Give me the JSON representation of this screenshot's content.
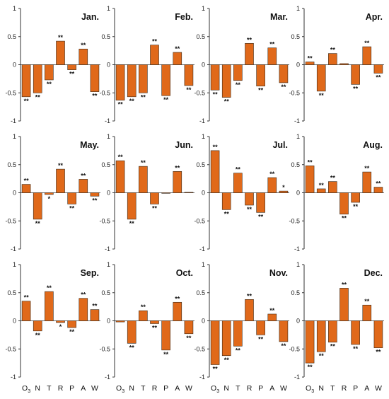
{
  "chart_data": [
    {
      "type": "bar",
      "month": "Jan.",
      "categories": [
        "O3",
        "N",
        "T",
        "R",
        "P",
        "A",
        "W"
      ],
      "values": [
        -0.57,
        -0.5,
        -0.27,
        0.42,
        -0.09,
        0.28,
        -0.48
      ],
      "significance": [
        "**",
        "**",
        "**",
        "**",
        "**",
        "**",
        "**"
      ],
      "ylim": [
        -1,
        1
      ]
    },
    {
      "type": "bar",
      "month": "Feb.",
      "categories": [
        "O3",
        "N",
        "T",
        "R",
        "P",
        "A",
        "W"
      ],
      "values": [
        -0.63,
        -0.57,
        -0.5,
        0.35,
        -0.55,
        0.22,
        -0.37
      ],
      "significance": [
        "**",
        "**",
        "**",
        "**",
        "**",
        "**",
        "**"
      ],
      "ylim": [
        -1,
        1
      ]
    },
    {
      "type": "bar",
      "month": "Mar.",
      "categories": [
        "O3",
        "N",
        "T",
        "R",
        "P",
        "A",
        "W"
      ],
      "values": [
        -0.45,
        -0.58,
        -0.28,
        0.38,
        -0.38,
        0.3,
        -0.32
      ],
      "significance": [
        "**",
        "**",
        "**",
        "**",
        "**",
        "**",
        "**"
      ],
      "ylim": [
        -1,
        1
      ]
    },
    {
      "type": "bar",
      "month": "Apr.",
      "categories": [
        "O3",
        "N",
        "T",
        "R",
        "P",
        "A",
        "W"
      ],
      "values": [
        0.05,
        -0.47,
        0.2,
        0.02,
        -0.35,
        0.32,
        -0.15
      ],
      "significance": [
        "**",
        "**",
        "**",
        "",
        "**",
        "**",
        "**"
      ],
      "ylim": [
        -1,
        1
      ]
    },
    {
      "type": "bar",
      "month": "May.",
      "categories": [
        "O3",
        "N",
        "T",
        "R",
        "P",
        "A",
        "W"
      ],
      "values": [
        0.15,
        -0.47,
        -0.03,
        0.42,
        -0.2,
        0.24,
        -0.06
      ],
      "significance": [
        "**",
        "**",
        "*",
        "**",
        "**",
        "**",
        "**"
      ],
      "ylim": [
        -1,
        1
      ]
    },
    {
      "type": "bar",
      "month": "Jun.",
      "categories": [
        "O3",
        "N",
        "T",
        "R",
        "P",
        "A",
        "W"
      ],
      "values": [
        0.57,
        -0.47,
        0.47,
        -0.2,
        -0.01,
        0.38,
        0.01
      ],
      "significance": [
        "**",
        "**",
        "**",
        "**",
        "",
        "**",
        ""
      ],
      "ylim": [
        -1,
        1
      ]
    },
    {
      "type": "bar",
      "month": "Jul.",
      "categories": [
        "O3",
        "N",
        "T",
        "R",
        "P",
        "A",
        "W"
      ],
      "values": [
        0.75,
        -0.3,
        0.35,
        -0.22,
        -0.35,
        0.27,
        0.03
      ],
      "significance": [
        "**",
        "**",
        "**",
        "**",
        "**",
        "**",
        "*"
      ],
      "ylim": [
        -1,
        1
      ]
    },
    {
      "type": "bar",
      "month": "Aug.",
      "categories": [
        "O3",
        "N",
        "T",
        "R",
        "P",
        "A",
        "W"
      ],
      "values": [
        0.48,
        0.07,
        0.2,
        -0.38,
        -0.17,
        0.37,
        0.1
      ],
      "significance": [
        "**",
        "**",
        "**",
        "**",
        "**",
        "**",
        "**"
      ],
      "ylim": [
        -1,
        1
      ]
    },
    {
      "type": "bar",
      "month": "Sep.",
      "categories": [
        "O3",
        "N",
        "T",
        "R",
        "P",
        "A",
        "W"
      ],
      "values": [
        0.35,
        -0.18,
        0.52,
        -0.03,
        -0.12,
        0.4,
        0.2
      ],
      "significance": [
        "**",
        "**",
        "**",
        "*",
        "**",
        "**",
        "**"
      ],
      "ylim": [
        -1,
        1
      ]
    },
    {
      "type": "bar",
      "month": "Oct.",
      "categories": [
        "O3",
        "N",
        "T",
        "R",
        "P",
        "A",
        "W"
      ],
      "values": [
        -0.02,
        -0.4,
        0.18,
        -0.05,
        -0.52,
        0.33,
        -0.23
      ],
      "significance": [
        "",
        "**",
        "**",
        "**",
        "**",
        "**",
        "**"
      ],
      "ylim": [
        -1,
        1
      ]
    },
    {
      "type": "bar",
      "month": "Nov.",
      "categories": [
        "O3",
        "N",
        "T",
        "R",
        "P",
        "A",
        "W"
      ],
      "values": [
        -0.78,
        -0.62,
        -0.45,
        0.38,
        -0.25,
        0.12,
        -0.37
      ],
      "significance": [
        "**",
        "**",
        "**",
        "**",
        "**",
        "**",
        "**"
      ],
      "ylim": [
        -1,
        1
      ]
    },
    {
      "type": "bar",
      "month": "Dec.",
      "categories": [
        "O3",
        "N",
        "T",
        "R",
        "P",
        "A",
        "W"
      ],
      "values": [
        -0.75,
        -0.55,
        -0.38,
        0.58,
        -0.42,
        0.28,
        -0.48
      ],
      "significance": [
        "**",
        "**",
        "**",
        "**",
        "**",
        "**",
        "**"
      ],
      "ylim": [
        -1,
        1
      ]
    }
  ],
  "y_ticks": [
    "1",
    "0.5",
    "0",
    "-0.5",
    "-1"
  ],
  "x_axis_labels": [
    "O3",
    "N",
    "T",
    "R",
    "P",
    "A",
    "W"
  ],
  "colors": {
    "bar": "#E0691A",
    "bar_stroke": "#3a2a1a",
    "axis": "#333333"
  }
}
